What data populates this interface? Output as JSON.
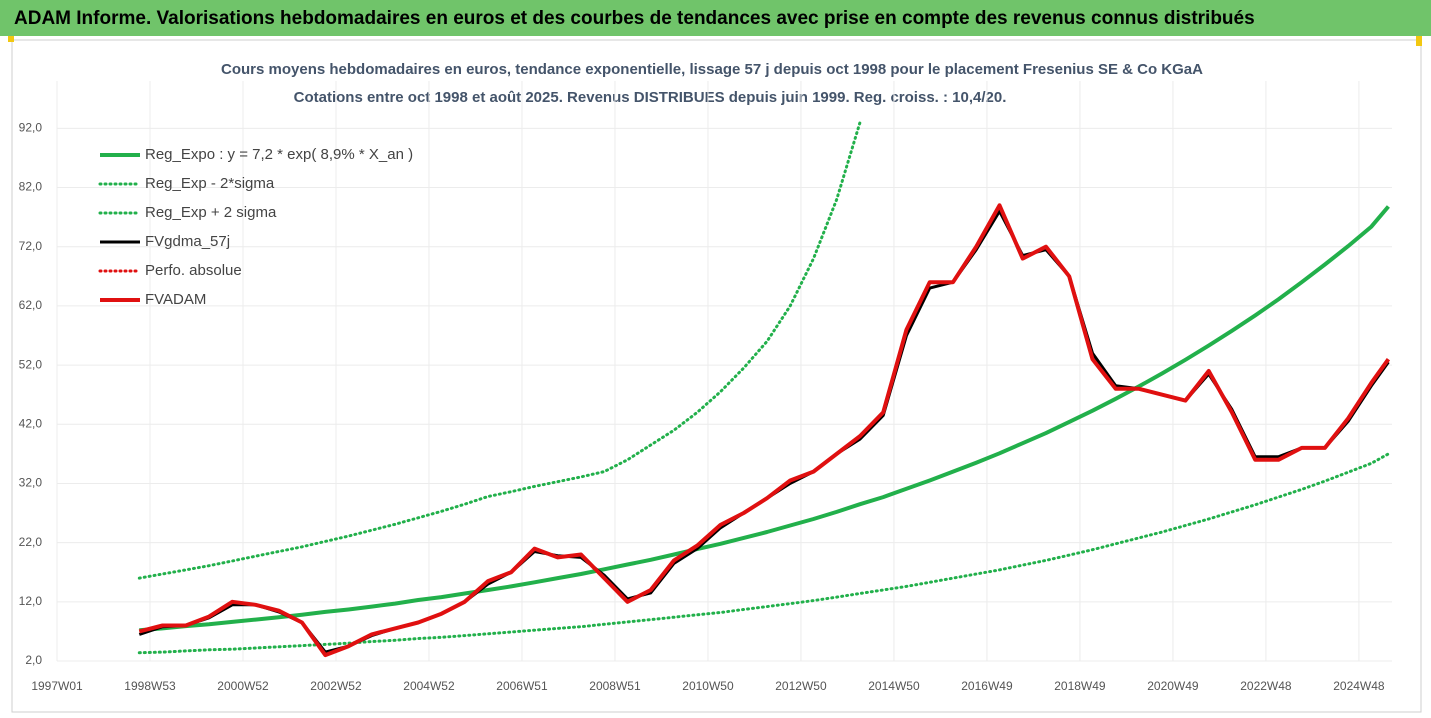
{
  "header": {
    "title": "ADAM Informe. Valorisations hebdomadaires en euros et des courbes de tendances avec prise en compte des revenus connus distribués"
  },
  "chart_data": {
    "type": "line",
    "title": "Cours moyens hebdomadaires en euros, tendance exponentielle, lissage 57 j depuis oct 1998 pour le placement Fresenius SE & Co KGaA",
    "subtitle": "Cotations entre oct 1998 et août 2025. Revenus DISTRIBUES depuis juin 1999. Reg. croiss. : 10,4/20.",
    "xlim": [
      0,
      1493
    ],
    "xticks": [
      {
        "value": 0,
        "label": "1997W01"
      },
      {
        "value": 104,
        "label": "1998W53"
      },
      {
        "value": 208,
        "label": "2000W52"
      },
      {
        "value": 312,
        "label": "2002W52"
      },
      {
        "value": 416,
        "label": "2004W52"
      },
      {
        "value": 520,
        "label": "2006W51"
      },
      {
        "value": 624,
        "label": "2008W51"
      },
      {
        "value": 728,
        "label": "2010W50"
      },
      {
        "value": 832,
        "label": "2012W50"
      },
      {
        "value": 936,
        "label": "2014W50"
      },
      {
        "value": 1040,
        "label": "2016W49"
      },
      {
        "value": 1144,
        "label": "2018W49"
      },
      {
        "value": 1248,
        "label": "2020W49"
      },
      {
        "value": 1352,
        "label": "2022W48"
      },
      {
        "value": 1456,
        "label": "2024W48"
      }
    ],
    "ylim": [
      2,
      100
    ],
    "yticks": [
      {
        "value": 2,
        "label": "2,0"
      },
      {
        "value": 12,
        "label": "12,0"
      },
      {
        "value": 22,
        "label": "22,0"
      },
      {
        "value": 32,
        "label": "32,0"
      },
      {
        "value": 42,
        "label": "42,0"
      },
      {
        "value": 52,
        "label": "52,0"
      },
      {
        "value": 62,
        "label": "62,0"
      },
      {
        "value": 72,
        "label": "72,0"
      },
      {
        "value": 82,
        "label": "82,0"
      },
      {
        "value": 92,
        "label": "92,0"
      }
    ],
    "grid": true,
    "legend": "top-left",
    "x": [
      92,
      118,
      144,
      170,
      196,
      222,
      248,
      274,
      300,
      326,
      352,
      378,
      404,
      430,
      456,
      482,
      508,
      534,
      560,
      586,
      612,
      638,
      664,
      690,
      716,
      742,
      768,
      794,
      820,
      846,
      872,
      898,
      924,
      950,
      976,
      1002,
      1028,
      1054,
      1080,
      1106,
      1132,
      1158,
      1184,
      1210,
      1236,
      1262,
      1288,
      1314,
      1340,
      1366,
      1392,
      1418,
      1444,
      1470,
      1489
    ],
    "series": [
      {
        "name": "Reg_Expo : y = 7,2 * exp( 8,9% *  X_an )",
        "color": "#22b04b",
        "style": "thick",
        "values": [
          7.2,
          7.5,
          7.9,
          8.2,
          8.6,
          9.0,
          9.4,
          9.8,
          10.3,
          10.7,
          11.2,
          11.7,
          12.3,
          12.8,
          13.4,
          14.0,
          14.6,
          15.3,
          16.0,
          16.7,
          17.5,
          18.3,
          19.1,
          20.0,
          20.9,
          21.8,
          22.8,
          23.8,
          24.9,
          26.0,
          27.2,
          28.5,
          29.7,
          31.1,
          32.5,
          34.0,
          35.5,
          37.1,
          38.8,
          40.5,
          42.4,
          44.3,
          46.3,
          48.4,
          50.6,
          52.9,
          55.3,
          57.8,
          60.4,
          63.1,
          66.0,
          69.0,
          72.1,
          75.4,
          78.8
        ]
      },
      {
        "name": "Reg_Exp - 2*sigma",
        "color": "#22b04b",
        "style": "dotted",
        "values": [
          3.4,
          3.5,
          3.7,
          3.9,
          4.0,
          4.2,
          4.4,
          4.6,
          4.8,
          5.0,
          5.3,
          5.5,
          5.8,
          6.0,
          6.3,
          6.6,
          6.9,
          7.2,
          7.5,
          7.8,
          8.2,
          8.6,
          9.0,
          9.4,
          9.8,
          10.2,
          10.7,
          11.2,
          11.7,
          12.2,
          12.8,
          13.4,
          14.0,
          14.6,
          15.3,
          16.0,
          16.7,
          17.4,
          18.2,
          19.0,
          19.9,
          20.8,
          21.8,
          22.8,
          23.8,
          24.9,
          26.0,
          27.2,
          28.4,
          29.7,
          31.0,
          32.4,
          33.9,
          35.4,
          37.0
        ]
      },
      {
        "name": "Reg_Exp + 2 sigma",
        "color": "#22b04b",
        "style": "dotted",
        "values": [
          16.0,
          16.7,
          17.4,
          18.1,
          18.9,
          19.7,
          20.5,
          21.3,
          22.2,
          23.1,
          24.1,
          25.1,
          26.2,
          27.3,
          28.5,
          29.8,
          30.6,
          31.5,
          32.3,
          33.1,
          34.0,
          36.0,
          38.5,
          41.0,
          44.0,
          47.5,
          51.5,
          56.0,
          62.0,
          70.0,
          80.0,
          93.0,
          null,
          null,
          null,
          null,
          null,
          null,
          null,
          null,
          null,
          null,
          null,
          null,
          null,
          null,
          null,
          null,
          null,
          null,
          null,
          null,
          null,
          null,
          null
        ]
      },
      {
        "name": "FVgdma_57j",
        "color": "#000000",
        "style": "solid",
        "values": [
          6.5,
          7.8,
          8.0,
          9.3,
          11.5,
          11.5,
          10.3,
          8.5,
          3.5,
          4.5,
          6.3,
          7.5,
          8.5,
          10.0,
          12.0,
          15.0,
          17.0,
          20.5,
          19.8,
          19.5,
          16.5,
          12.5,
          13.5,
          18.5,
          21.0,
          24.5,
          27.0,
          29.5,
          32.0,
          34.0,
          37.0,
          39.5,
          43.5,
          57.0,
          65.0,
          66.0,
          71.5,
          78.0,
          70.5,
          71.5,
          67.0,
          54.0,
          48.5,
          48.0,
          47.0,
          46.0,
          50.5,
          44.5,
          36.5,
          36.5,
          38.0,
          38.0,
          42.5,
          48.5,
          52.5
        ]
      },
      {
        "name": "Perfo. absolue",
        "color": "#e01010",
        "style": "dotted"
      },
      {
        "name": "FVADAM",
        "color": "#e01010",
        "style": "thick",
        "values": [
          7.0,
          8.0,
          8.0,
          9.5,
          12.0,
          11.5,
          10.5,
          8.5,
          3.0,
          4.5,
          6.5,
          7.5,
          8.5,
          10.0,
          12.0,
          15.5,
          17.0,
          21.0,
          19.5,
          20.0,
          16.0,
          12.0,
          14.0,
          19.0,
          21.5,
          25.0,
          27.0,
          29.5,
          32.5,
          34.0,
          37.0,
          40.0,
          44.0,
          58.0,
          66.0,
          66.0,
          72.0,
          79.0,
          70.0,
          72.0,
          67.0,
          53.0,
          48.0,
          48.0,
          47.0,
          46.0,
          51.0,
          44.0,
          36.0,
          36.0,
          38.0,
          38.0,
          43.0,
          49.0,
          53.0
        ]
      }
    ]
  }
}
